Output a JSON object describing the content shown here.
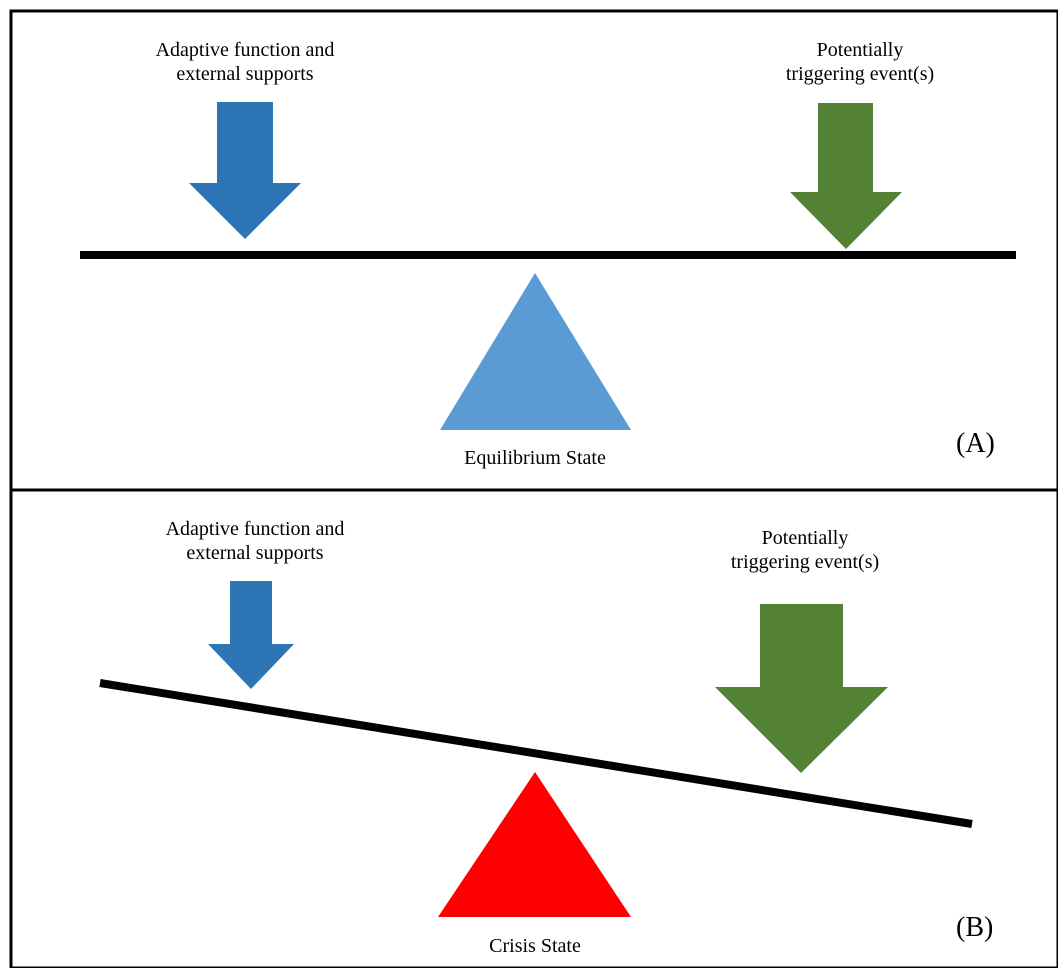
{
  "panel_a": {
    "left_label": [
      "Adaptive function and",
      "external supports"
    ],
    "right_label": [
      "Potentially",
      "triggering event(s)"
    ],
    "state_label": "Equilibrium State",
    "panel_tag": "(A)",
    "colors": {
      "support": "#2E75B6",
      "trigger": "#548235",
      "fulcrum": "#5B9BD5",
      "beam": "#000000"
    }
  },
  "panel_b": {
    "left_label": [
      "Adaptive function and",
      "external supports"
    ],
    "right_label": [
      "Potentially",
      "triggering event(s)"
    ],
    "state_label": "Crisis State",
    "panel_tag": "(B)",
    "colors": {
      "support": "#2E75B6",
      "trigger": "#548235",
      "fulcrum": "#FF0000",
      "beam": "#000000"
    }
  }
}
